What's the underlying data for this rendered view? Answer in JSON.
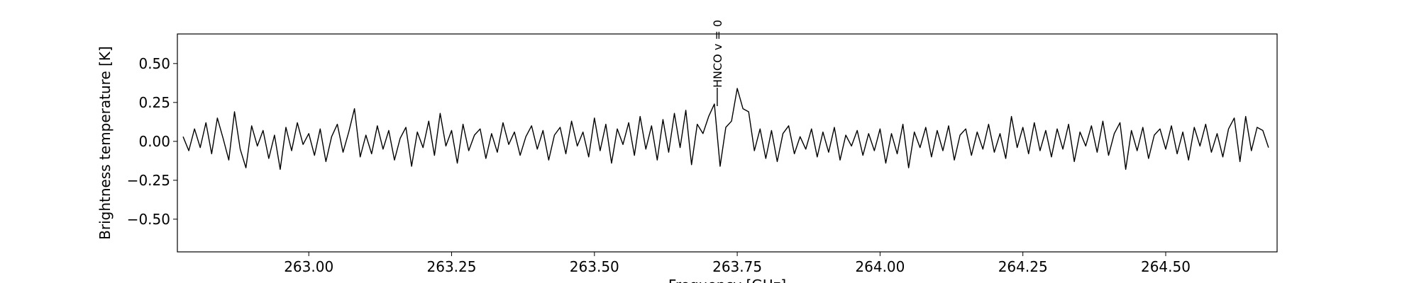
{
  "chart_data": {
    "type": "line",
    "xlabel": "Frequency [GHz]",
    "ylabel": "Brightness temperature [K]",
    "color": "#000000",
    "annotation": {
      "text": "HNCO v = 0",
      "x": 263.715
    },
    "xlim": [
      262.77,
      264.695
    ],
    "ylim": [
      -0.71,
      0.69
    ],
    "xticks": [
      {
        "value": 263,
        "label": "263.00"
      },
      {
        "value": 263.25,
        "label": "263.25"
      },
      {
        "value": 263.5,
        "label": "263.50"
      },
      {
        "value": 263.75,
        "label": "263.75"
      },
      {
        "value": 264,
        "label": "264.00"
      },
      {
        "value": 264.25,
        "label": "264.25"
      },
      {
        "value": 264.5,
        "label": "264.50"
      }
    ],
    "yticks": [
      {
        "value": -0.5,
        "label": "−0.50"
      },
      {
        "value": -0.25,
        "label": "−0.25"
      },
      {
        "value": 0,
        "label": "0.00"
      },
      {
        "value": 0.25,
        "label": "0.25"
      },
      {
        "value": 0.5,
        "label": "0.50"
      }
    ],
    "x": [
      262.78,
      262.79,
      262.8,
      262.81,
      262.82,
      262.83,
      262.84,
      262.85,
      262.86,
      262.87,
      262.88,
      262.89,
      262.9,
      262.91,
      262.92,
      262.93,
      262.94,
      262.95,
      262.96,
      262.97,
      262.98,
      262.99,
      263.0,
      263.01,
      263.02,
      263.03,
      263.04,
      263.05,
      263.06,
      263.07,
      263.08,
      263.09,
      263.1,
      263.11,
      263.12,
      263.13,
      263.14,
      263.15,
      263.16,
      263.17,
      263.18,
      263.19,
      263.2,
      263.21,
      263.22,
      263.23,
      263.24,
      263.25,
      263.26,
      263.27,
      263.28,
      263.29,
      263.3,
      263.31,
      263.32,
      263.33,
      263.34,
      263.35,
      263.36,
      263.37,
      263.38,
      263.39,
      263.4,
      263.41,
      263.42,
      263.43,
      263.44,
      263.45,
      263.46,
      263.47,
      263.48,
      263.49,
      263.5,
      263.51,
      263.52,
      263.53,
      263.54,
      263.55,
      263.56,
      263.57,
      263.58,
      263.59,
      263.6,
      263.61,
      263.62,
      263.63,
      263.64,
      263.65,
      263.66,
      263.67,
      263.68,
      263.69,
      263.7,
      263.71,
      263.72,
      263.73,
      263.74,
      263.75,
      263.76,
      263.77,
      263.78,
      263.79,
      263.8,
      263.81,
      263.82,
      263.83,
      263.84,
      263.85,
      263.86,
      263.87,
      263.88,
      263.89,
      263.9,
      263.91,
      263.92,
      263.93,
      263.94,
      263.95,
      263.96,
      263.97,
      263.98,
      263.99,
      264.0,
      264.01,
      264.02,
      264.03,
      264.04,
      264.05,
      264.06,
      264.07,
      264.08,
      264.09,
      264.1,
      264.11,
      264.12,
      264.13,
      264.14,
      264.15,
      264.16,
      264.17,
      264.18,
      264.19,
      264.2,
      264.21,
      264.22,
      264.23,
      264.24,
      264.25,
      264.26,
      264.27,
      264.28,
      264.29,
      264.3,
      264.31,
      264.32,
      264.33,
      264.34,
      264.35,
      264.36,
      264.37,
      264.38,
      264.39,
      264.4,
      264.41,
      264.42,
      264.43,
      264.44,
      264.45,
      264.46,
      264.47,
      264.48,
      264.49,
      264.5,
      264.51,
      264.52,
      264.53,
      264.54,
      264.55,
      264.56,
      264.57,
      264.58,
      264.59,
      264.6,
      264.61,
      264.62,
      264.63,
      264.64,
      264.65,
      264.66,
      264.67,
      264.68
    ],
    "values": [
      0.03,
      -0.06,
      0.08,
      -0.04,
      0.12,
      -0.08,
      0.15,
      0.02,
      -0.12,
      0.19,
      -0.05,
      -0.17,
      0.1,
      -0.03,
      0.07,
      -0.11,
      0.04,
      -0.18,
      0.09,
      -0.06,
      0.12,
      -0.02,
      0.05,
      -0.09,
      0.08,
      -0.13,
      0.03,
      0.11,
      -0.07,
      0.06,
      0.21,
      -0.1,
      0.04,
      -0.08,
      0.1,
      -0.05,
      0.07,
      -0.12,
      0.02,
      0.09,
      -0.16,
      0.06,
      -0.04,
      0.13,
      -0.09,
      0.18,
      -0.03,
      0.07,
      -0.14,
      0.11,
      -0.06,
      0.04,
      0.08,
      -0.11,
      0.05,
      -0.07,
      0.12,
      -0.02,
      0.06,
      -0.09,
      0.03,
      0.1,
      -0.05,
      0.07,
      -0.12,
      0.04,
      0.09,
      -0.08,
      0.13,
      -0.03,
      0.06,
      -0.1,
      0.15,
      -0.06,
      0.11,
      -0.14,
      0.08,
      -0.02,
      0.12,
      -0.09,
      0.16,
      -0.05,
      0.1,
      -0.12,
      0.14,
      -0.07,
      0.18,
      -0.04,
      0.2,
      -0.15,
      0.11,
      0.05,
      0.16,
      0.24,
      -0.16,
      0.09,
      0.13,
      0.34,
      0.21,
      0.19,
      -0.06,
      0.08,
      -0.11,
      0.07,
      -0.13,
      0.05,
      0.1,
      -0.08,
      0.03,
      -0.05,
      0.08,
      -0.1,
      0.06,
      -0.07,
      0.09,
      -0.12,
      0.04,
      -0.03,
      0.07,
      -0.09,
      0.05,
      -0.06,
      0.08,
      -0.14,
      0.05,
      -0.08,
      0.11,
      -0.17,
      0.06,
      -0.04,
      0.09,
      -0.1,
      0.07,
      -0.06,
      0.1,
      -0.12,
      0.04,
      0.08,
      -0.09,
      0.06,
      -0.05,
      0.11,
      -0.07,
      0.05,
      -0.11,
      0.16,
      -0.04,
      0.09,
      -0.08,
      0.12,
      -0.06,
      0.07,
      -0.1,
      0.08,
      -0.05,
      0.11,
      -0.13,
      0.06,
      -0.03,
      0.1,
      -0.07,
      0.13,
      -0.09,
      0.05,
      0.12,
      -0.18,
      0.07,
      -0.06,
      0.09,
      -0.11,
      0.04,
      0.08,
      -0.05,
      0.1,
      -0.08,
      0.06,
      -0.12,
      0.09,
      -0.03,
      0.11,
      -0.07,
      0.05,
      -0.1,
      0.08,
      0.15,
      -0.13,
      0.16,
      -0.06,
      0.09,
      0.07,
      -0.04
    ]
  }
}
